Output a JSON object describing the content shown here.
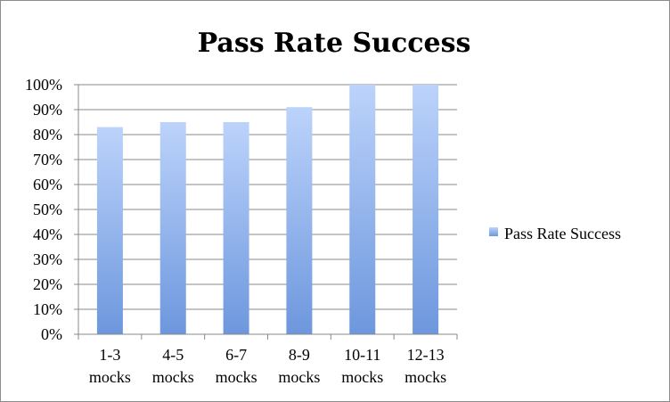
{
  "chart_data": {
    "type": "bar",
    "title": "Pass Rate Success",
    "xlabel": "",
    "ylabel": "",
    "categories": [
      [
        "1-3",
        "mocks"
      ],
      [
        "4-5",
        "mocks"
      ],
      [
        "6-7",
        "mocks"
      ],
      [
        "8-9",
        "mocks"
      ],
      [
        "10-11",
        "mocks"
      ],
      [
        "12-13",
        "mocks"
      ]
    ],
    "series": [
      {
        "name": "Pass Rate Success",
        "values": [
          83,
          85,
          85,
          91,
          100,
          100
        ]
      }
    ],
    "ylim": [
      0,
      100
    ],
    "yticks": [
      "0%",
      "10%",
      "20%",
      "30%",
      "40%",
      "50%",
      "60%",
      "70%",
      "80%",
      "90%",
      "100%"
    ],
    "grid": true,
    "legend_position": "right",
    "colors": {
      "bar_top": "#bcd3fb",
      "bar_bottom": "#6d97dd",
      "grid": "#888888",
      "axis": "#888888"
    }
  }
}
